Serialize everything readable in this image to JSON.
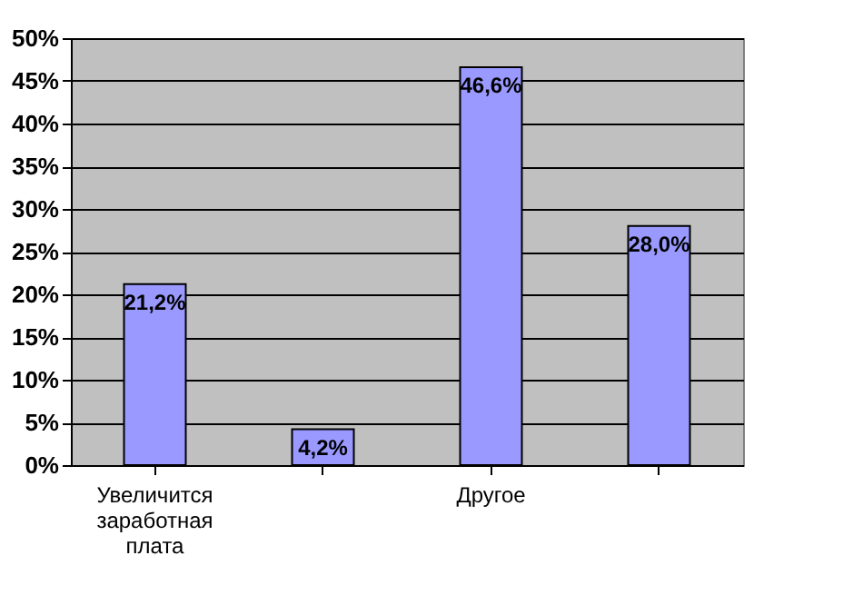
{
  "chart_data": {
    "type": "bar",
    "categories": [
      "Увеличится заработная плата",
      null,
      "Другое",
      null
    ],
    "values": [
      21.2,
      4.2,
      46.6,
      28.0
    ],
    "value_labels": [
      "21,2%",
      "4,2%",
      "46,6%",
      "28,0%"
    ],
    "color": "#9999ff",
    "ylim": [
      0,
      50
    ],
    "yticks": [
      {
        "value": 0,
        "label": "0%"
      },
      {
        "value": 5,
        "label": "5%"
      },
      {
        "value": 10,
        "label": "10%"
      },
      {
        "value": 15,
        "label": "15%"
      },
      {
        "value": 20,
        "label": "20%"
      },
      {
        "value": 25,
        "label": "25%"
      },
      {
        "value": 30,
        "label": "30%"
      },
      {
        "value": 35,
        "label": "35%"
      },
      {
        "value": 40,
        "label": "40%"
      },
      {
        "value": 45,
        "label": "45%"
      },
      {
        "value": 50,
        "label": "50%"
      }
    ],
    "grid": "y"
  }
}
